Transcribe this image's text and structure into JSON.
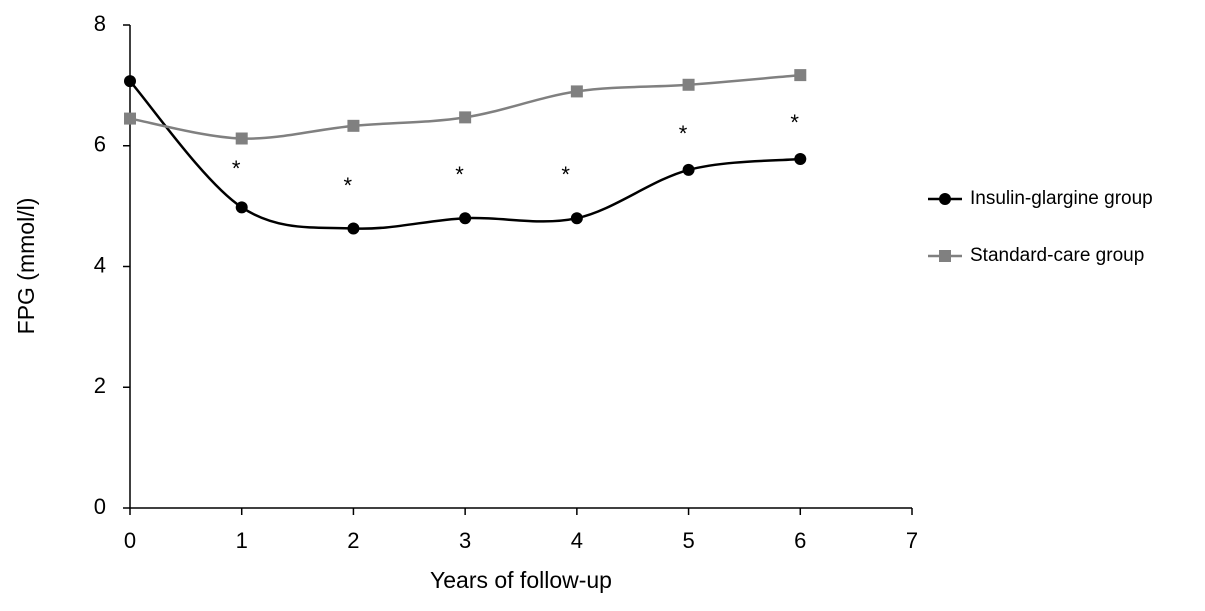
{
  "chart_data": {
    "type": "line",
    "smooth": true,
    "x": [
      0,
      1,
      2,
      3,
      4,
      5,
      6
    ],
    "series": [
      {
        "name": "Insulin-glargine group",
        "color": "#000000",
        "marker": "circle",
        "values": [
          7.07,
          4.98,
          4.63,
          4.8,
          4.8,
          5.6,
          5.78
        ]
      },
      {
        "name": "Standard-care group",
        "color": "#808080",
        "marker": "square",
        "values": [
          6.45,
          6.12,
          6.33,
          6.47,
          6.9,
          7.01,
          7.17
        ]
      }
    ],
    "xlabel": "Years of follow-up",
    "ylabel": "FPG (mmol/l)",
    "xlim": [
      0,
      7
    ],
    "xticks": [
      0,
      1,
      2,
      3,
      4,
      5,
      6,
      7
    ],
    "ylim": [
      0,
      8
    ],
    "yticks": [
      0,
      2,
      4,
      6,
      8
    ],
    "grid": false,
    "legend": "right",
    "annotations": [
      {
        "text": "*",
        "x": 0.95,
        "y": 5.68
      },
      {
        "text": "*",
        "x": 1.95,
        "y": 5.4
      },
      {
        "text": "*",
        "x": 2.95,
        "y": 5.58
      },
      {
        "text": "*",
        "x": 3.9,
        "y": 5.58
      },
      {
        "text": "*",
        "x": 4.95,
        "y": 6.26
      },
      {
        "text": "*",
        "x": 5.95,
        "y": 6.44
      }
    ]
  }
}
